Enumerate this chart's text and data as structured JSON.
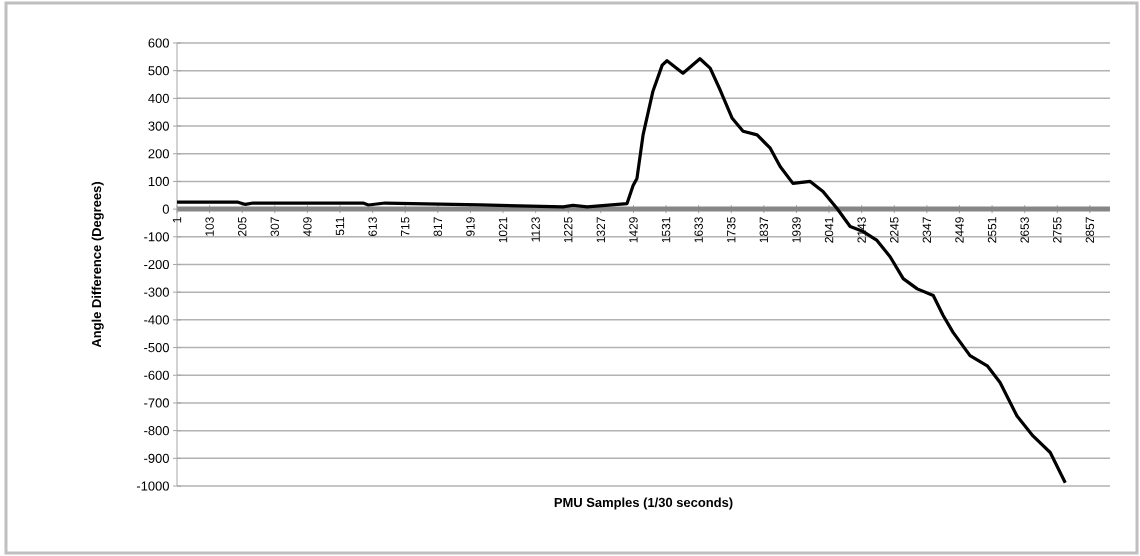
{
  "chart_data": {
    "type": "line",
    "xlabel": "PMU Samples (1/30 seconds)",
    "ylabel": "Angle Difference (Degrees)",
    "x": [
      1,
      192,
      215,
      239,
      583,
      600,
      652,
      949,
      1209,
      1240,
      1284,
      1409,
      1428,
      1440,
      1459,
      1490,
      1519,
      1534,
      1584,
      1637,
      1669,
      1700,
      1738,
      1772,
      1816,
      1857,
      1888,
      1928,
      1982,
      2022,
      2066,
      2107,
      2148,
      2191,
      2232,
      2273,
      2317,
      2367,
      2398,
      2429,
      2482,
      2536,
      2576,
      2629,
      2679,
      2733,
      2780
    ],
    "values": [
      25,
      25,
      17,
      22,
      22,
      15,
      22,
      15,
      8,
      14,
      8,
      20,
      85,
      111,
      267,
      426,
      520,
      536,
      491,
      543,
      509,
      431,
      328,
      281,
      268,
      220,
      154,
      93,
      100,
      64,
      2,
      -63,
      -81,
      -113,
      -172,
      -251,
      -288,
      -312,
      -384,
      -445,
      -529,
      -566,
      -626,
      -747,
      -819,
      -879,
      -988
    ],
    "color": "#000000",
    "xlim": [
      1,
      2920
    ],
    "xticks": [
      1,
      103,
      205,
      307,
      409,
      511,
      613,
      715,
      817,
      919,
      1021,
      1123,
      1225,
      1327,
      1429,
      1531,
      1633,
      1735,
      1837,
      1939,
      2041,
      2143,
      2245,
      2347,
      2449,
      2551,
      2653,
      2755,
      2857
    ],
    "ylim": [
      -1000,
      600
    ],
    "yticks": [
      600,
      500,
      400,
      300,
      200,
      100,
      0,
      -100,
      -200,
      -300,
      -400,
      -500,
      -600,
      -700,
      -800,
      -900,
      -1000
    ],
    "grid": "y"
  }
}
